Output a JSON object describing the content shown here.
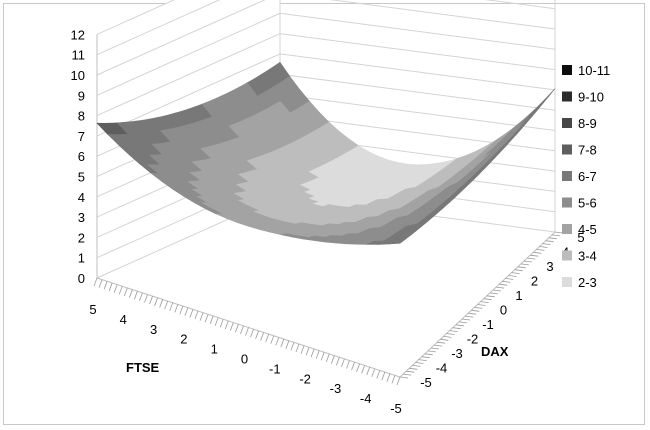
{
  "chart_data": {
    "type": "surface",
    "title": "",
    "x_axis": {
      "label": "FTSE",
      "ticks": [
        "5",
        "4",
        "3",
        "2",
        "1",
        "0",
        "-1",
        "-2",
        "-3",
        "-4",
        "-5"
      ],
      "range": [
        5,
        -5
      ]
    },
    "y_axis": {
      "label": "DAX",
      "ticks": [
        "-5",
        "-4",
        "-3",
        "-2",
        "-1",
        "0",
        "1",
        "2",
        "3",
        "4",
        "5"
      ],
      "range": [
        -5,
        5
      ]
    },
    "z_axis": {
      "label": "",
      "ticks": [
        "0",
        "1",
        "2",
        "3",
        "4",
        "5",
        "6",
        "7",
        "8",
        "9",
        "10",
        "11",
        "12"
      ],
      "range": [
        0,
        12
      ]
    },
    "grid": true,
    "legend_position": "right",
    "legend": [
      {
        "label": "10-11",
        "color": "#0d0d0d"
      },
      {
        "label": "9-10",
        "color": "#2b2b2b"
      },
      {
        "label": "8-9",
        "color": "#474747"
      },
      {
        "label": "7-8",
        "color": "#5e5e5e"
      },
      {
        "label": "6-7",
        "color": "#787878"
      },
      {
        "label": "5-6",
        "color": "#8d8d8d"
      },
      {
        "label": "4-5",
        "color": "#a3a3a3"
      },
      {
        "label": "3-4",
        "color": "#bdbdbd"
      },
      {
        "label": "2-3",
        "color": "#dcdcdc"
      }
    ]
  }
}
